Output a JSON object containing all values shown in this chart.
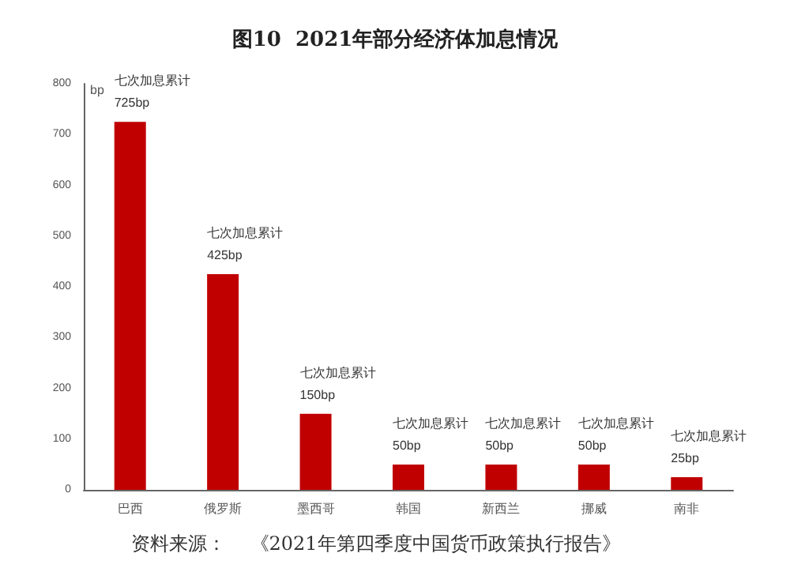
{
  "chart_data": {
    "type": "bar",
    "title": "图10  2021年部分经济体加息情况",
    "ylabel": "bp",
    "categories": [
      "巴西",
      "俄罗斯",
      "墨西哥",
      "韩国",
      "新西兰",
      "挪威",
      "南非"
    ],
    "values": [
      725,
      425,
      150,
      50,
      50,
      50,
      25
    ],
    "color": "#c00000",
    "value_labels": [
      "七次加息累计\n725bp",
      "七次加息累计\n425bp",
      "七次加息累计\n150bp",
      "七次加息累计\n50bp",
      "七次加息累计\n50bp",
      "七次加息累计\n50bp",
      "七次加息累计\n25bp"
    ],
    "ylim": [
      0,
      800
    ],
    "yticks": [
      0,
      100,
      200,
      300,
      400,
      500,
      600,
      700,
      800
    ],
    "grid": false,
    "annotations": [
      "资料来源：    《2021年第四季度中国货币政策执行报告》"
    ]
  }
}
